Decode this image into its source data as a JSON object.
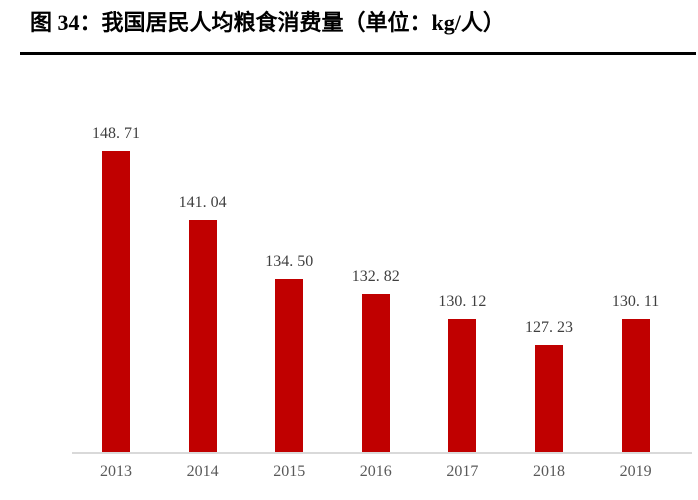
{
  "header": {
    "title": "图 34：我国居民人均粮食消费量（单位：kg/人）"
  },
  "chart_data": {
    "type": "bar",
    "title": "图 34：我国居民人均粮食消费量（单位：kg/人）",
    "unit": "kg/人",
    "categories": [
      "2013",
      "2014",
      "2015",
      "2016",
      "2017",
      "2018",
      "2019"
    ],
    "values": [
      148.71,
      141.04,
      134.5,
      132.82,
      130.12,
      127.23,
      130.11
    ],
    "value_labels": [
      "148. 71",
      "141. 04",
      "134. 50",
      "132. 82",
      "130. 12",
      "127. 23",
      "130. 11"
    ],
    "xlabel": "",
    "ylabel": "",
    "ylim": [
      115.3,
      153
    ],
    "grid": false,
    "legend": "none",
    "data_labels": true,
    "colors": {
      "bar": "#c00000",
      "value_label": "#3f3f3f",
      "tick_label": "#595959",
      "axis_line": "#d9d9d9",
      "title": "#000000",
      "divider": "#000000"
    }
  }
}
